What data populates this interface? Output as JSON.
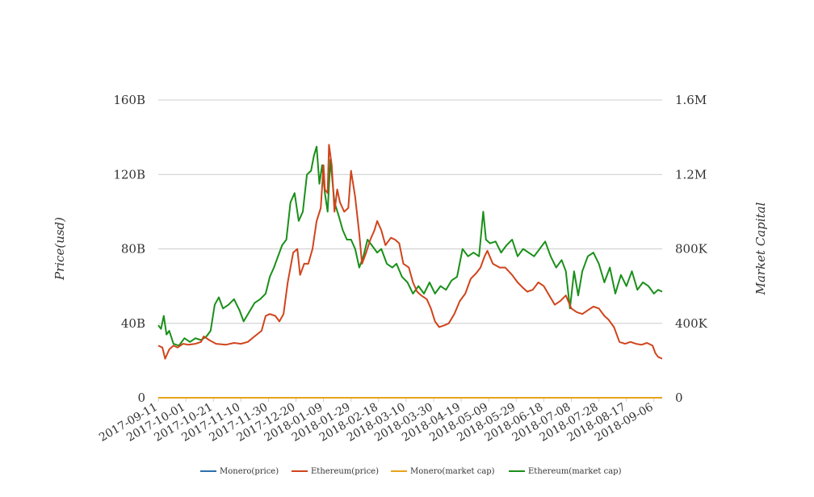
{
  "chart_data": {
    "type": "line",
    "title": "",
    "y_left_label": "Price(usd)",
    "y_right_label": "Market Capital",
    "y_left_ticks": [
      "0",
      "40B",
      "80B",
      "120B",
      "160B"
    ],
    "y_right_ticks": [
      "0",
      "400K",
      "800K",
      "1.2M",
      "1.6M"
    ],
    "y_left_range": [
      0,
      160000000000
    ],
    "y_right_range": [
      0,
      1600000
    ],
    "x_range": [
      "2017-09-11",
      "2018-09-12"
    ],
    "x_ticks": [
      "2017-09-11",
      "2017-10-01",
      "2017-10-21",
      "2017-11-10",
      "2017-11-30",
      "2017-12-20",
      "2018-01-09",
      "2018-01-29",
      "2018-02-18",
      "2018-03-10",
      "2018-03-30",
      "2018-04-19",
      "2018-05-09",
      "2018-05-29",
      "2018-06-18",
      "2018-07-08",
      "2018-07-28",
      "2018-08-17",
      "2018-09-06"
    ],
    "legend_position": "bottom",
    "gridlines": "horizontal",
    "series": [
      {
        "name": "Monero(price)",
        "axis": "left",
        "color": "#2f6fad",
        "points": [
          [
            "2017-09-11",
            0
          ],
          [
            "2018-09-12",
            0
          ]
        ]
      },
      {
        "name": "Ethereum(price)",
        "axis": "left",
        "color": "#d0441c",
        "points": [
          [
            "2017-09-11",
            28000000000
          ],
          [
            "2017-09-14",
            27000000000
          ],
          [
            "2017-09-16",
            21000000000
          ],
          [
            "2017-09-19",
            26000000000
          ],
          [
            "2017-09-22",
            28000000000
          ],
          [
            "2017-09-25",
            27000000000
          ],
          [
            "2017-09-29",
            29000000000
          ],
          [
            "2017-10-03",
            28500000000
          ],
          [
            "2017-10-08",
            29000000000
          ],
          [
            "2017-10-12",
            30000000000
          ],
          [
            "2017-10-14",
            33000000000
          ],
          [
            "2017-10-18",
            31000000000
          ],
          [
            "2017-10-23",
            29000000000
          ],
          [
            "2017-10-30",
            28500000000
          ],
          [
            "2017-11-05",
            29500000000
          ],
          [
            "2017-11-10",
            29000000000
          ],
          [
            "2017-11-15",
            30000000000
          ],
          [
            "2017-11-20",
            33000000000
          ],
          [
            "2017-11-25",
            36000000000
          ],
          [
            "2017-11-28",
            44000000000
          ],
          [
            "2017-12-01",
            45000000000
          ],
          [
            "2017-12-05",
            44000000000
          ],
          [
            "2017-12-08",
            41000000000
          ],
          [
            "2017-12-11",
            45000000000
          ],
          [
            "2017-12-14",
            62000000000
          ],
          [
            "2017-12-18",
            78000000000
          ],
          [
            "2017-12-21",
            80000000000
          ],
          [
            "2017-12-23",
            66000000000
          ],
          [
            "2017-12-26",
            72000000000
          ],
          [
            "2017-12-29",
            72000000000
          ],
          [
            "2018-01-01",
            80000000000
          ],
          [
            "2018-01-04",
            95000000000
          ],
          [
            "2018-01-07",
            102000000000
          ],
          [
            "2018-01-09",
            125000000000
          ],
          [
            "2018-01-10",
            112000000000
          ],
          [
            "2018-01-12",
            110000000000
          ],
          [
            "2018-01-13",
            136000000000
          ],
          [
            "2018-01-15",
            125000000000
          ],
          [
            "2018-01-17",
            100000000000
          ],
          [
            "2018-01-19",
            112000000000
          ],
          [
            "2018-01-21",
            105000000000
          ],
          [
            "2018-01-24",
            100000000000
          ],
          [
            "2018-01-27",
            102000000000
          ],
          [
            "2018-01-29",
            122000000000
          ],
          [
            "2018-02-01",
            108000000000
          ],
          [
            "2018-02-04",
            88000000000
          ],
          [
            "2018-02-06",
            72000000000
          ],
          [
            "2018-02-09",
            78000000000
          ],
          [
            "2018-02-12",
            85000000000
          ],
          [
            "2018-02-15",
            90000000000
          ],
          [
            "2018-02-17",
            95000000000
          ],
          [
            "2018-02-20",
            90000000000
          ],
          [
            "2018-02-23",
            82000000000
          ],
          [
            "2018-02-27",
            86000000000
          ],
          [
            "2018-03-02",
            85000000000
          ],
          [
            "2018-03-05",
            83000000000
          ],
          [
            "2018-03-08",
            72000000000
          ],
          [
            "2018-03-12",
            70000000000
          ],
          [
            "2018-03-15",
            62000000000
          ],
          [
            "2018-03-18",
            57000000000
          ],
          [
            "2018-03-21",
            55000000000
          ],
          [
            "2018-03-25",
            53000000000
          ],
          [
            "2018-03-28",
            48000000000
          ],
          [
            "2018-03-31",
            41000000000
          ],
          [
            "2018-04-03",
            38000000000
          ],
          [
            "2018-04-07",
            39000000000
          ],
          [
            "2018-04-10",
            40000000000
          ],
          [
            "2018-04-14",
            45000000000
          ],
          [
            "2018-04-18",
            52000000000
          ],
          [
            "2018-04-22",
            56000000000
          ],
          [
            "2018-04-26",
            64000000000
          ],
          [
            "2018-04-30",
            67000000000
          ],
          [
            "2018-05-03",
            70000000000
          ],
          [
            "2018-05-06",
            76000000000
          ],
          [
            "2018-05-08",
            79000000000
          ],
          [
            "2018-05-12",
            72000000000
          ],
          [
            "2018-05-17",
            70000000000
          ],
          [
            "2018-05-21",
            70000000000
          ],
          [
            "2018-05-26",
            66000000000
          ],
          [
            "2018-05-30",
            62000000000
          ],
          [
            "2018-06-03",
            59000000000
          ],
          [
            "2018-06-06",
            57000000000
          ],
          [
            "2018-06-10",
            58000000000
          ],
          [
            "2018-06-14",
            62000000000
          ],
          [
            "2018-06-18",
            60000000000
          ],
          [
            "2018-06-22",
            55000000000
          ],
          [
            "2018-06-26",
            50000000000
          ],
          [
            "2018-06-30",
            52000000000
          ],
          [
            "2018-07-04",
            55000000000
          ],
          [
            "2018-07-08",
            48000000000
          ],
          [
            "2018-07-12",
            46000000000
          ],
          [
            "2018-07-16",
            45000000000
          ],
          [
            "2018-07-20",
            47000000000
          ],
          [
            "2018-07-24",
            49000000000
          ],
          [
            "2018-07-28",
            48000000000
          ],
          [
            "2018-08-01",
            44000000000
          ],
          [
            "2018-08-04",
            42000000000
          ],
          [
            "2018-08-08",
            38000000000
          ],
          [
            "2018-08-12",
            30000000000
          ],
          [
            "2018-08-16",
            29000000000
          ],
          [
            "2018-08-20",
            30000000000
          ],
          [
            "2018-08-24",
            29000000000
          ],
          [
            "2018-08-28",
            28500000000
          ],
          [
            "2018-09-01",
            29500000000
          ],
          [
            "2018-09-05",
            28000000000
          ],
          [
            "2018-09-07",
            24000000000
          ],
          [
            "2018-09-09",
            22000000000
          ],
          [
            "2018-09-12",
            21000000000
          ]
        ]
      },
      {
        "name": "Monero(market cap)",
        "axis": "right",
        "color": "#e8a31a",
        "points": [
          [
            "2017-09-11",
            0
          ],
          [
            "2018-09-12",
            0
          ]
        ]
      },
      {
        "name": "Ethereum(market cap)",
        "axis": "right",
        "color": "#1a8f1a",
        "points": [
          [
            "2017-09-11",
            390000
          ],
          [
            "2017-09-13",
            370000
          ],
          [
            "2017-09-15",
            440000
          ],
          [
            "2017-09-17",
            340000
          ],
          [
            "2017-09-19",
            360000
          ],
          [
            "2017-09-22",
            290000
          ],
          [
            "2017-09-26",
            280000
          ],
          [
            "2017-09-30",
            320000
          ],
          [
            "2017-10-04",
            300000
          ],
          [
            "2017-10-08",
            320000
          ],
          [
            "2017-10-12",
            310000
          ],
          [
            "2017-10-16",
            330000
          ],
          [
            "2017-10-19",
            360000
          ],
          [
            "2017-10-22",
            500000
          ],
          [
            "2017-10-25",
            540000
          ],
          [
            "2017-10-28",
            480000
          ],
          [
            "2017-11-01",
            500000
          ],
          [
            "2017-11-05",
            530000
          ],
          [
            "2017-11-09",
            470000
          ],
          [
            "2017-11-12",
            410000
          ],
          [
            "2017-11-16",
            460000
          ],
          [
            "2017-11-20",
            510000
          ],
          [
            "2017-11-24",
            530000
          ],
          [
            "2017-11-28",
            560000
          ],
          [
            "2017-12-01",
            650000
          ],
          [
            "2017-12-04",
            700000
          ],
          [
            "2017-12-07",
            760000
          ],
          [
            "2017-12-10",
            820000
          ],
          [
            "2017-12-13",
            850000
          ],
          [
            "2017-12-16",
            1050000
          ],
          [
            "2017-12-19",
            1100000
          ],
          [
            "2017-12-22",
            950000
          ],
          [
            "2017-12-25",
            1000000
          ],
          [
            "2017-12-28",
            1200000
          ],
          [
            "2017-12-31",
            1220000
          ],
          [
            "2018-01-02",
            1300000
          ],
          [
            "2018-01-04",
            1350000
          ],
          [
            "2018-01-06",
            1150000
          ],
          [
            "2018-01-08",
            1250000
          ],
          [
            "2018-01-10",
            1100000
          ],
          [
            "2018-01-12",
            1000000
          ],
          [
            "2018-01-14",
            1280000
          ],
          [
            "2018-01-17",
            1050000
          ],
          [
            "2018-01-20",
            980000
          ],
          [
            "2018-01-23",
            900000
          ],
          [
            "2018-01-26",
            850000
          ],
          [
            "2018-01-29",
            850000
          ],
          [
            "2018-02-01",
            800000
          ],
          [
            "2018-02-04",
            700000
          ],
          [
            "2018-02-07",
            760000
          ],
          [
            "2018-02-10",
            850000
          ],
          [
            "2018-02-13",
            820000
          ],
          [
            "2018-02-17",
            780000
          ],
          [
            "2018-02-20",
            800000
          ],
          [
            "2018-02-24",
            720000
          ],
          [
            "2018-02-28",
            700000
          ],
          [
            "2018-03-03",
            720000
          ],
          [
            "2018-03-07",
            650000
          ],
          [
            "2018-03-11",
            620000
          ],
          [
            "2018-03-15",
            560000
          ],
          [
            "2018-03-19",
            600000
          ],
          [
            "2018-03-23",
            560000
          ],
          [
            "2018-03-27",
            620000
          ],
          [
            "2018-03-31",
            560000
          ],
          [
            "2018-04-04",
            600000
          ],
          [
            "2018-04-08",
            580000
          ],
          [
            "2018-04-12",
            630000
          ],
          [
            "2018-04-16",
            650000
          ],
          [
            "2018-04-20",
            800000
          ],
          [
            "2018-04-24",
            760000
          ],
          [
            "2018-04-28",
            780000
          ],
          [
            "2018-05-02",
            760000
          ],
          [
            "2018-05-05",
            1000000
          ],
          [
            "2018-05-07",
            850000
          ],
          [
            "2018-05-10",
            830000
          ],
          [
            "2018-05-14",
            840000
          ],
          [
            "2018-05-18",
            780000
          ],
          [
            "2018-05-22",
            820000
          ],
          [
            "2018-05-26",
            850000
          ],
          [
            "2018-05-30",
            760000
          ],
          [
            "2018-06-03",
            800000
          ],
          [
            "2018-06-07",
            780000
          ],
          [
            "2018-06-11",
            760000
          ],
          [
            "2018-06-15",
            800000
          ],
          [
            "2018-06-19",
            840000
          ],
          [
            "2018-06-23",
            760000
          ],
          [
            "2018-06-27",
            700000
          ],
          [
            "2018-07-01",
            740000
          ],
          [
            "2018-07-04",
            680000
          ],
          [
            "2018-07-07",
            480000
          ],
          [
            "2018-07-10",
            680000
          ],
          [
            "2018-07-13",
            550000
          ],
          [
            "2018-07-16",
            680000
          ],
          [
            "2018-07-20",
            760000
          ],
          [
            "2018-07-24",
            780000
          ],
          [
            "2018-07-28",
            720000
          ],
          [
            "2018-08-01",
            620000
          ],
          [
            "2018-08-05",
            700000
          ],
          [
            "2018-08-09",
            560000
          ],
          [
            "2018-08-13",
            660000
          ],
          [
            "2018-08-17",
            600000
          ],
          [
            "2018-08-21",
            680000
          ],
          [
            "2018-08-25",
            580000
          ],
          [
            "2018-08-29",
            620000
          ],
          [
            "2018-09-02",
            600000
          ],
          [
            "2018-09-06",
            560000
          ],
          [
            "2018-09-09",
            580000
          ],
          [
            "2018-09-12",
            570000
          ]
        ]
      }
    ]
  }
}
